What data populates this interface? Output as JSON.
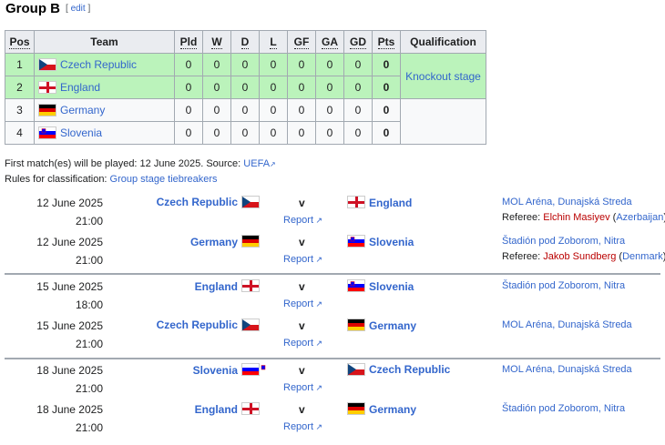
{
  "header": {
    "title": "Group B",
    "edit_label": "edit"
  },
  "table": {
    "headers": {
      "pos": "Pos",
      "team": "Team",
      "pld": "Pld",
      "w": "W",
      "d": "D",
      "l": "L",
      "gf": "GF",
      "ga": "GA",
      "gd": "GD",
      "pts": "Pts",
      "qualification": "Qualification"
    },
    "rows": [
      {
        "pos": "1",
        "team": "Czech Republic",
        "flag": "czech",
        "pld": "0",
        "w": "0",
        "d": "0",
        "l": "0",
        "gf": "0",
        "ga": "0",
        "gd": "0",
        "pts": "0"
      },
      {
        "pos": "2",
        "team": "England",
        "flag": "england",
        "pld": "0",
        "w": "0",
        "d": "0",
        "l": "0",
        "gf": "0",
        "ga": "0",
        "gd": "0",
        "pts": "0"
      },
      {
        "pos": "3",
        "team": "Germany",
        "flag": "germany",
        "pld": "0",
        "w": "0",
        "d": "0",
        "l": "0",
        "gf": "0",
        "ga": "0",
        "gd": "0",
        "pts": "0"
      },
      {
        "pos": "4",
        "team": "Slovenia",
        "flag": "slovenia",
        "pld": "0",
        "w": "0",
        "d": "0",
        "l": "0",
        "gf": "0",
        "ga": "0",
        "gd": "0",
        "pts": "0"
      }
    ],
    "qualification_green": "Knockout stage",
    "colors": {
      "green": "#bbf3bb",
      "header": "#eaecf0",
      "link": "#3366cc",
      "referee": "#ba0000"
    }
  },
  "notes": {
    "first_match_text": "First match(es) will be played: 12 June 2025. Source: ",
    "source_link": "UEFA",
    "rules_text": "Rules for classification: ",
    "rules_link": "Group stage tiebreakers"
  },
  "matches": [
    {
      "date": "12 June 2025",
      "time": "21:00",
      "home": "Czech Republic",
      "home_flag": "czech",
      "v": "v",
      "report": "Report",
      "away": "England",
      "away_flag": "england",
      "venue": "MOL Aréna, Dunajská Streda",
      "referee_label": "Referee: ",
      "referee": "Elchin Masiyev",
      "referee_country": "Azerbaijan"
    },
    {
      "date": "12 June 2025",
      "time": "21:00",
      "home": "Germany",
      "home_flag": "germany",
      "v": "v",
      "report": "Report",
      "away": "Slovenia",
      "away_flag": "slovenia",
      "venue": "Štadión pod Zoborom, Nitra",
      "referee_label": "Referee: ",
      "referee": "Jakob Sundberg",
      "referee_country": "Denmark"
    },
    {
      "date": "15 June 2025",
      "time": "18:00",
      "home": "England",
      "home_flag": "england",
      "v": "v",
      "report": "Report",
      "away": "Slovenia",
      "away_flag": "slovenia",
      "venue": "Štadión pod Zoborom, Nitra",
      "referee_label": "",
      "referee": "",
      "referee_country": ""
    },
    {
      "date": "15 June 2025",
      "time": "21:00",
      "home": "Czech Republic",
      "home_flag": "czech",
      "v": "v",
      "report": "Report",
      "away": "Germany",
      "away_flag": "germany",
      "venue": "MOL Aréna, Dunajská Streda",
      "referee_label": "",
      "referee": "",
      "referee_country": ""
    },
    {
      "date": "18 June 2025",
      "time": "21:00",
      "home": "Slovenia",
      "home_flag": "slovenia",
      "v": "v",
      "report": "Report",
      "away": "Czech Republic",
      "away_flag": "czech",
      "venue": "MOL Aréna, Dunajská Streda",
      "referee_label": "",
      "referee": "",
      "referee_country": ""
    },
    {
      "date": "18 June 2025",
      "time": "21:00",
      "home": "England",
      "home_flag": "england",
      "v": "v",
      "report": "Report",
      "away": "Germany",
      "away_flag": "germany",
      "venue": "Štadión pod Zoborom, Nitra",
      "referee_label": "",
      "referee": "",
      "referee_country": ""
    }
  ]
}
